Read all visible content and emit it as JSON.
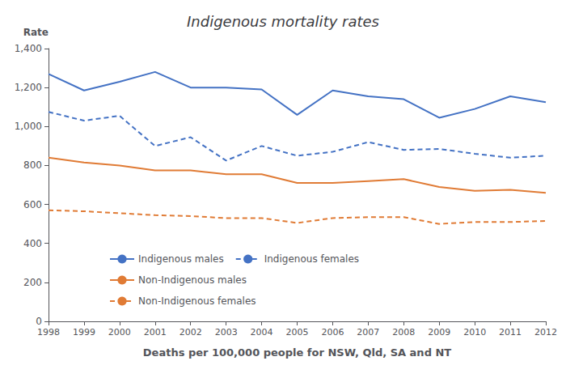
{
  "chart_data": {
    "type": "line",
    "title": "Indigenous mortality rates",
    "x_label": "Deaths per 100,000 people for NSW, Qld, SA and NT",
    "y_label": "Rate",
    "x": [
      1998,
      1999,
      2000,
      2001,
      2002,
      2003,
      2004,
      2005,
      2006,
      2007,
      2008,
      2009,
      2010,
      2011,
      2012
    ],
    "series": [
      {
        "name": "Indigenous males",
        "color": "#4472c4",
        "line_style": "solid",
        "values": [
          1270,
          1185,
          1230,
          1280,
          1200,
          1200,
          1190,
          1060,
          1185,
          1155,
          1140,
          1045,
          1090,
          1155,
          1125
        ]
      },
      {
        "name": "Indigenous females",
        "color": "#4472c4",
        "line_style": "dashed",
        "values": [
          1075,
          1030,
          1055,
          900,
          945,
          825,
          900,
          850,
          870,
          920,
          880,
          885,
          860,
          840,
          850
        ]
      },
      {
        "name": "Non-Indigenous males",
        "color": "#e07b35",
        "line_style": "solid",
        "values": [
          840,
          815,
          800,
          775,
          775,
          755,
          755,
          710,
          710,
          720,
          730,
          690,
          670,
          675,
          660
        ]
      },
      {
        "name": "Non-Indigenous females",
        "color": "#e07b35",
        "line_style": "dashed",
        "values": [
          570,
          565,
          555,
          545,
          540,
          530,
          530,
          505,
          530,
          535,
          535,
          500,
          510,
          510,
          515
        ]
      }
    ],
    "xlim": [
      1998,
      2012
    ],
    "xticks": [
      1998,
      1999,
      2000,
      2001,
      2002,
      2003,
      2004,
      2005,
      2006,
      2007,
      2008,
      2009,
      2010,
      2011,
      2012
    ],
    "ylim": [
      0,
      1400
    ],
    "yticks": [
      0,
      200,
      400,
      600,
      800,
      {
        "value": 1000,
        "label": "1,000"
      },
      {
        "value": 1200,
        "label": "1,200"
      },
      {
        "value": 1400,
        "label": "1,400"
      }
    ],
    "grid": false,
    "legend": "lower left"
  }
}
